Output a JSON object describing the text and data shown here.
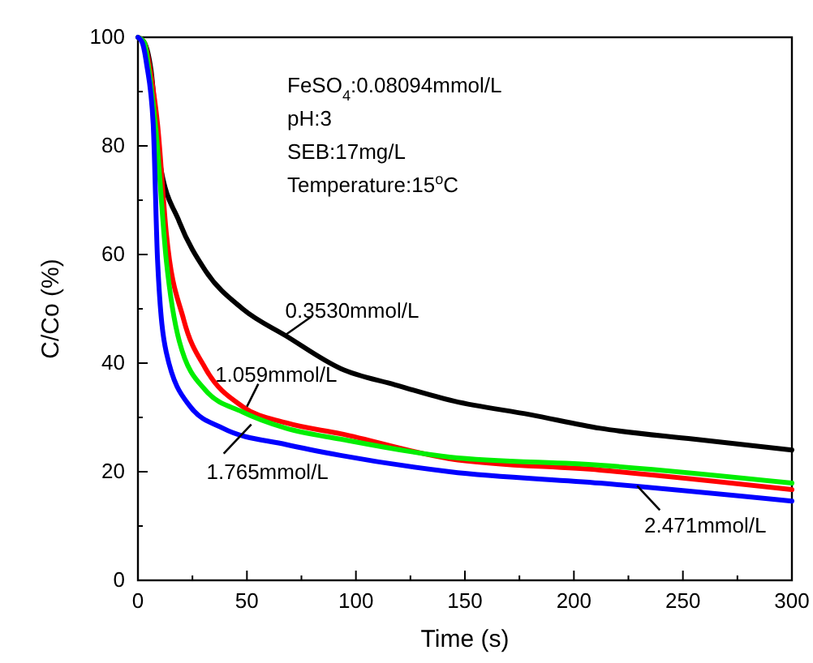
{
  "chart_data": {
    "type": "line",
    "xlabel": "Time (s)",
    "ylabel": "C/Co (%)",
    "xlim": [
      0,
      300
    ],
    "ylim": [
      0,
      100
    ],
    "xticks": [
      0,
      {
        "value": 25,
        "label": null
      },
      50,
      {
        "value": 75,
        "label": null
      },
      100,
      {
        "value": 125,
        "label": null
      },
      150,
      {
        "value": 175,
        "label": null
      },
      200,
      {
        "value": 225,
        "label": null
      },
      250,
      {
        "value": 275,
        "label": null
      },
      300
    ],
    "yticks": [
      0,
      {
        "value": 10,
        "label": null
      },
      20,
      {
        "value": 30,
        "label": null
      },
      40,
      {
        "value": 50,
        "label": null
      },
      60,
      {
        "value": 70,
        "label": null
      },
      80,
      {
        "value": 90,
        "label": null
      },
      100
    ],
    "grid": false,
    "marker": "none",
    "line_style": "solid",
    "series": [
      {
        "color": "#000000",
        "x": [
          0,
          3,
          6,
          10,
          19,
          31,
          48,
          68,
          93,
          118,
          145,
          180,
          212,
          255,
          300
        ],
        "values": [
          100,
          99,
          94,
          77,
          66,
          57,
          50,
          45,
          39,
          36,
          33,
          30.5,
          28,
          26,
          24
        ]
      },
      {
        "color": "#ff0000",
        "x": [
          0,
          3,
          6,
          9,
          13,
          21,
          31,
          48,
          68,
          93,
          143,
          212,
          300
        ],
        "values": [
          100,
          99,
          93,
          84,
          64,
          48,
          39,
          32,
          29,
          27,
          22.4,
          20.3,
          16.7
        ]
      },
      {
        "color": "#00ee00",
        "x": [
          0,
          3,
          5,
          8,
          13,
          19,
          31,
          48,
          68,
          93,
          143,
          212,
          300
        ],
        "values": [
          100,
          99,
          94,
          84,
          59,
          44,
          35,
          31,
          28,
          26,
          22.7,
          21.2,
          17.9
        ]
      },
      {
        "color": "#0000ff",
        "x": [
          0,
          2,
          4,
          7,
          9,
          13,
          24,
          39,
          68,
          93,
          143,
          212,
          300
        ],
        "values": [
          100,
          99,
          95,
          84,
          59,
          42,
          32,
          28,
          25,
          23,
          20,
          17.9,
          14.6
        ]
      }
    ],
    "annotations": [
      {
        "text": "0.3530mmol/L",
        "x": 67,
        "y": 45
      },
      {
        "text": "1.059mmol/L",
        "x": 50,
        "y": 32
      },
      {
        "text": "1.765mmol/L",
        "x": 52,
        "y": 28.7
      },
      {
        "text": "2.471mmol/L",
        "x": 229,
        "y": 17.4
      },
      "FeSO$_{4}$:0.08094mmol/L",
      "pH:3",
      "SEB:17mg/L",
      "Temperature:15$^{o}$C"
    ]
  }
}
